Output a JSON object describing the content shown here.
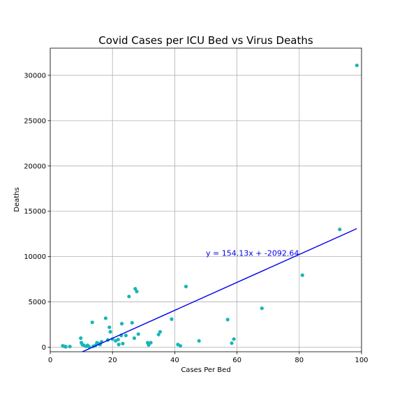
{
  "chart_data": {
    "type": "scatter",
    "title": "Covid Cases per ICU Bed vs Virus Deaths",
    "xlabel": "Cases Per Bed",
    "ylabel": "Deaths",
    "xlim": [
      0,
      100
    ],
    "ylim": [
      -500,
      33000
    ],
    "xticks": [
      0,
      20,
      40,
      60,
      80,
      100
    ],
    "yticks": [
      0,
      5000,
      10000,
      15000,
      20000,
      25000,
      30000
    ],
    "grid": true,
    "point_color": "#17b6b6",
    "line_color": "#0000ee",
    "regression": {
      "slope": 154.13,
      "intercept": -2092.64,
      "x_range": [
        10,
        98.5
      ],
      "label": "y = 154.13x + -2092.64",
      "label_at": [
        50,
        10100
      ]
    },
    "points": [
      {
        "x": 4,
        "y": 150
      },
      {
        "x": 4.5,
        "y": 100
      },
      {
        "x": 5,
        "y": 50
      },
      {
        "x": 6.3,
        "y": 80
      },
      {
        "x": 9.8,
        "y": 1000
      },
      {
        "x": 10,
        "y": 500
      },
      {
        "x": 10.3,
        "y": 300
      },
      {
        "x": 10.8,
        "y": 200
      },
      {
        "x": 11.5,
        "y": 100
      },
      {
        "x": 12,
        "y": 200
      },
      {
        "x": 12.5,
        "y": 50
      },
      {
        "x": 13.5,
        "y": 2750
      },
      {
        "x": 13.8,
        "y": 100
      },
      {
        "x": 14.5,
        "y": 200
      },
      {
        "x": 15,
        "y": 500
      },
      {
        "x": 15.5,
        "y": 400
      },
      {
        "x": 16,
        "y": 300
      },
      {
        "x": 16.5,
        "y": 600
      },
      {
        "x": 17.8,
        "y": 3200
      },
      {
        "x": 18.5,
        "y": 800
      },
      {
        "x": 19,
        "y": 2200
      },
      {
        "x": 19.3,
        "y": 1700
      },
      {
        "x": 20,
        "y": 900
      },
      {
        "x": 21,
        "y": 700
      },
      {
        "x": 21.8,
        "y": 850
      },
      {
        "x": 22,
        "y": 300
      },
      {
        "x": 22.8,
        "y": 1300
      },
      {
        "x": 23,
        "y": 2600
      },
      {
        "x": 23.3,
        "y": 400
      },
      {
        "x": 24.3,
        "y": 1300
      },
      {
        "x": 25.3,
        "y": 5600
      },
      {
        "x": 26.3,
        "y": 2700
      },
      {
        "x": 27,
        "y": 1000
      },
      {
        "x": 27.3,
        "y": 6450
      },
      {
        "x": 27.8,
        "y": 6150
      },
      {
        "x": 28.3,
        "y": 1450
      },
      {
        "x": 31.3,
        "y": 500
      },
      {
        "x": 31.6,
        "y": 250
      },
      {
        "x": 32.3,
        "y": 500
      },
      {
        "x": 34.8,
        "y": 1400
      },
      {
        "x": 35.3,
        "y": 1700
      },
      {
        "x": 39,
        "y": 3100
      },
      {
        "x": 41,
        "y": 300
      },
      {
        "x": 41.8,
        "y": 150
      },
      {
        "x": 43.6,
        "y": 6700
      },
      {
        "x": 47.8,
        "y": 700
      },
      {
        "x": 57,
        "y": 3050
      },
      {
        "x": 58.3,
        "y": 450
      },
      {
        "x": 59,
        "y": 900
      },
      {
        "x": 68,
        "y": 4300
      },
      {
        "x": 81,
        "y": 7950
      },
      {
        "x": 93,
        "y": 13000
      },
      {
        "x": 98.5,
        "y": 31100
      }
    ]
  }
}
